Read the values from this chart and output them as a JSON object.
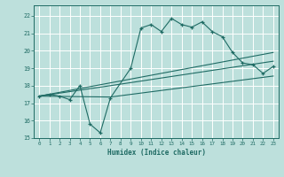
{
  "xlabel": "Humidex (Indice chaleur)",
  "xlim": [
    -0.5,
    23.5
  ],
  "ylim": [
    15,
    22.6
  ],
  "yticks": [
    15,
    16,
    17,
    18,
    19,
    20,
    21,
    22
  ],
  "xticks": [
    0,
    1,
    2,
    3,
    4,
    5,
    6,
    7,
    8,
    9,
    10,
    11,
    12,
    13,
    14,
    15,
    16,
    17,
    18,
    19,
    20,
    21,
    22,
    23
  ],
  "bg_color": "#bde0dc",
  "line_color": "#1f6b64",
  "grid_color": "#ffffff",
  "curve_x": [
    0,
    1,
    2,
    3,
    4,
    5,
    6,
    7,
    9,
    10,
    11,
    12,
    13,
    14,
    15,
    16,
    17,
    18,
    19,
    20,
    21,
    22,
    23
  ],
  "curve_y": [
    17.4,
    17.5,
    17.4,
    17.2,
    18.0,
    15.8,
    15.3,
    17.3,
    19.0,
    21.3,
    21.5,
    21.1,
    21.85,
    21.5,
    21.35,
    21.65,
    21.1,
    20.8,
    19.9,
    19.3,
    19.2,
    18.7,
    19.1
  ],
  "trend1_x": [
    0,
    23
  ],
  "trend1_y": [
    17.4,
    19.9
  ],
  "trend2_x": [
    0,
    7,
    23
  ],
  "trend2_y": [
    17.4,
    17.35,
    18.55
  ],
  "trend3_x": [
    0,
    7,
    23
  ],
  "trend3_y": [
    17.4,
    18.0,
    19.4
  ]
}
